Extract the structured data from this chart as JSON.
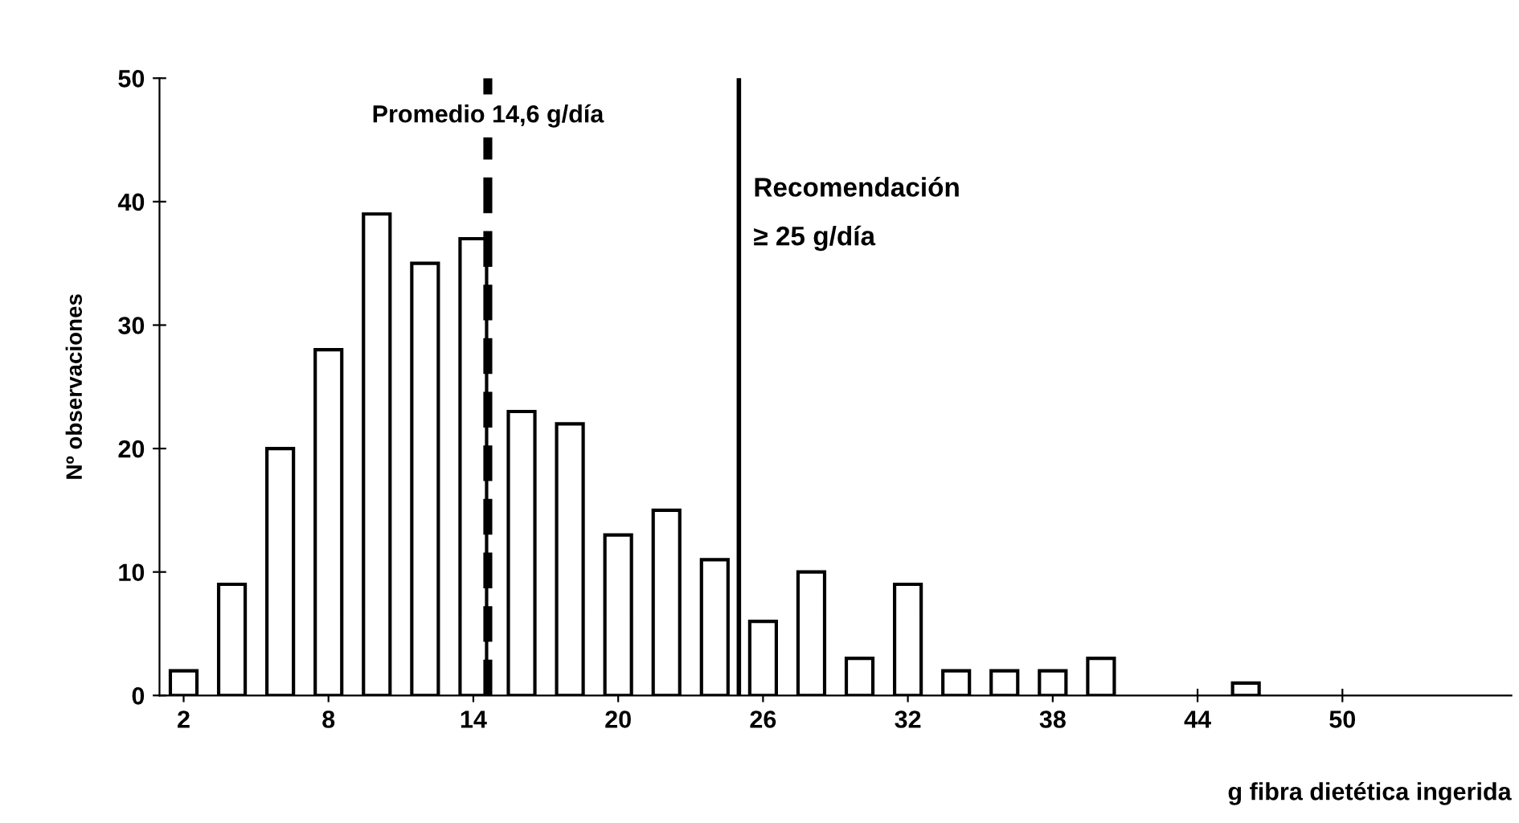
{
  "chart_data": {
    "type": "bar",
    "x": [
      2,
      4,
      6,
      8,
      10,
      12,
      14,
      16,
      18,
      20,
      22,
      24,
      26,
      28,
      30,
      32,
      34,
      36,
      38,
      40,
      42,
      44,
      46,
      48,
      50,
      52,
      54,
      56
    ],
    "values": [
      2,
      9,
      20,
      28,
      39,
      35,
      37,
      23,
      22,
      13,
      15,
      11,
      6,
      10,
      3,
      9,
      2,
      2,
      2,
      3,
      0,
      0,
      1,
      0,
      0,
      0,
      0,
      0
    ],
    "color": "#ffffff",
    "xlim": [
      1,
      57
    ],
    "xticks": [
      2,
      8,
      14,
      20,
      26,
      32,
      38,
      44,
      50
    ],
    "ylim": [
      0,
      50
    ],
    "yticks": [
      0,
      10,
      20,
      30,
      40,
      50
    ],
    "xlabel": "g fibra dietética ingerida",
    "ylabel": "Nº observaciones",
    "ref_lines": [
      {
        "axis": "x",
        "value": 14.6,
        "label": "Promedio 14,6 g/día",
        "line_style": "dashed",
        "color": "#000000"
      },
      {
        "axis": "x",
        "value": 25,
        "label": "Recomendación\n≥ 25 g/día",
        "line_style": "solid",
        "color": "#000000"
      }
    ],
    "grid": false
  }
}
